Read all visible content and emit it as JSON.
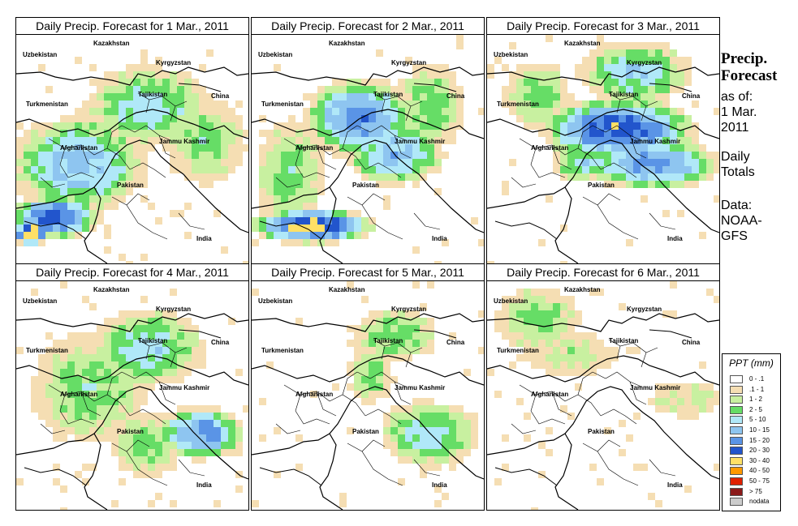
{
  "sidebar": {
    "title_line1": "Precip.",
    "title_line2": "Forecast",
    "asof_line1": "as of:",
    "asof_line2": "1 Mar.",
    "asof_line3": "2011",
    "totals_line1": "Daily",
    "totals_line2": "Totals",
    "data_line1": "Data:",
    "data_line2": "NOAA-",
    "data_line3": "GFS"
  },
  "map_labels": {
    "kazakhstan": "Kazakhstan",
    "uzbekistan": "Uzbekistan",
    "kyrgyzstan": "Kyrgyzstan",
    "tajikistan": "Tajikistan",
    "turkmenistan": "Turkmenistan",
    "china": "China",
    "afghanistan": "Afghanistan",
    "jammu_kashmir": "Jammu Kashmir",
    "pakistan": "Pakistan",
    "india": "India"
  },
  "panels": [
    {
      "title": "Daily Precip. Forecast for  1 Mar., 2011"
    },
    {
      "title": "Daily Precip. Forecast for  2 Mar., 2011"
    },
    {
      "title": "Daily Precip. Forecast for  3 Mar., 2011"
    },
    {
      "title": "Daily Precip. Forecast for  4 Mar., 2011"
    },
    {
      "title": "Daily Precip. Forecast for  5 Mar., 2011"
    },
    {
      "title": "Daily Precip. Forecast for  6 Mar., 2011"
    }
  ],
  "legend": {
    "title": "PPT (mm)",
    "items": [
      {
        "label": "0 - .1",
        "color": "#ffffff"
      },
      {
        "label": ".1 - 1",
        "color": "#f5deb3"
      },
      {
        "label": "1 - 2",
        "color": "#c8f0a0"
      },
      {
        "label": "2 - 5",
        "color": "#66dd66"
      },
      {
        "label": "5 - 10",
        "color": "#b0e8f8"
      },
      {
        "label": "10 - 15",
        "color": "#8ec5f0"
      },
      {
        "label": "15 - 20",
        "color": "#5a94e6"
      },
      {
        "label": "20 - 30",
        "color": "#2255cc"
      },
      {
        "label": "30 - 40",
        "color": "#ffe066"
      },
      {
        "label": "40 - 50",
        "color": "#ff9900"
      },
      {
        "label": "50 - 75",
        "color": "#e02000"
      },
      {
        "label": "> 75",
        "color": "#8b1a1a"
      },
      {
        "label": "nodata",
        "color": "#cccccc"
      }
    ]
  }
}
